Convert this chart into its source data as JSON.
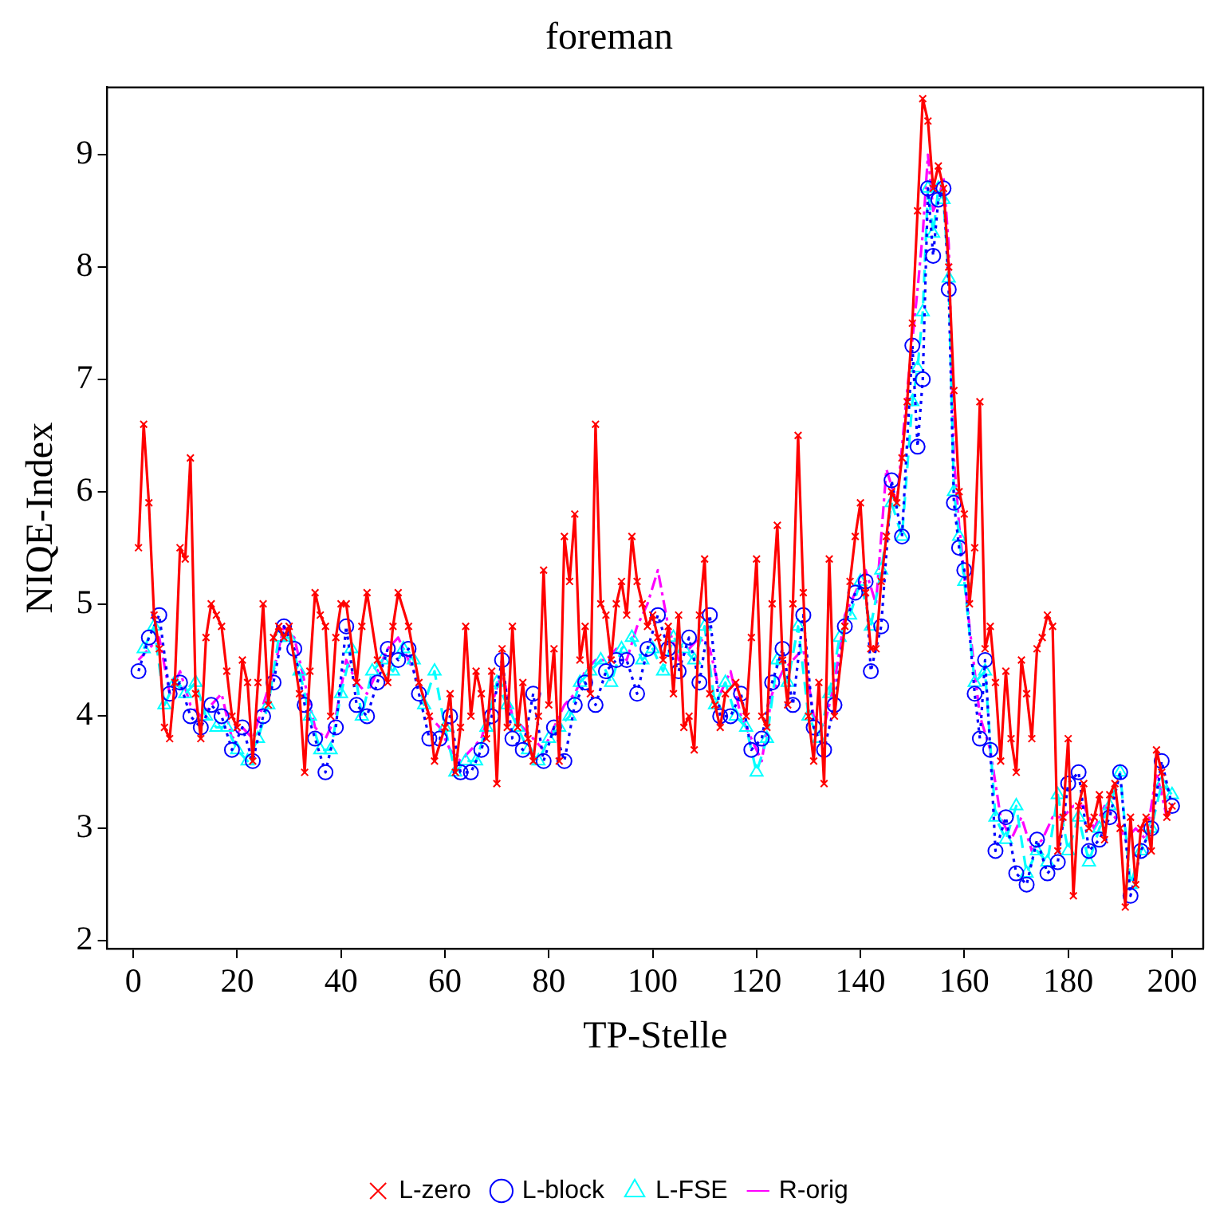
{
  "chart_data": {
    "type": "line",
    "title": "foreman",
    "xlabel": "TP-Stelle",
    "ylabel": "NIQE-Index",
    "xlim": [
      -5,
      206
    ],
    "ylim": [
      1.93,
      9.6
    ],
    "xticks": [
      0,
      20,
      40,
      60,
      80,
      100,
      120,
      140,
      160,
      180,
      200
    ],
    "yticks": [
      2,
      3,
      4,
      5,
      6,
      7,
      8,
      9
    ],
    "grid": false,
    "legend": "bottom",
    "series": [
      {
        "name": "L-zero",
        "color": "#ff0000",
        "marker": "cross",
        "line_style": "solid",
        "x": [
          1,
          2,
          3,
          4,
          5,
          6,
          7,
          8,
          9,
          10,
          11,
          12,
          13,
          14,
          15,
          16,
          17,
          18,
          19,
          20,
          21,
          22,
          23,
          24,
          25,
          26,
          27,
          28,
          29,
          30,
          32,
          33,
          34,
          35,
          36,
          37,
          38,
          39,
          40,
          41,
          43,
          44,
          45,
          47,
          49,
          50,
          51,
          53,
          55,
          57,
          58,
          60,
          61,
          62,
          63,
          64,
          65,
          66,
          67,
          68,
          69,
          70,
          71,
          72,
          73,
          74,
          75,
          76,
          77,
          78,
          79,
          80,
          81,
          82,
          83,
          84,
          85,
          86,
          87,
          88,
          89,
          90,
          91,
          92,
          93,
          94,
          95,
          96,
          97,
          98,
          99,
          100,
          101,
          102,
          103,
          104,
          105,
          106,
          107,
          108,
          109,
          110,
          111,
          112,
          113,
          114,
          116,
          118,
          119,
          120,
          121,
          122,
          123,
          124,
          125,
          126,
          127,
          128,
          129,
          130,
          131,
          132,
          133,
          134,
          135,
          137,
          138,
          139,
          140,
          141,
          142,
          143,
          144,
          145,
          146,
          147,
          148,
          149,
          150,
          151,
          152,
          153,
          154,
          155,
          156,
          157,
          158,
          159,
          160,
          161,
          162,
          163,
          164,
          165,
          166,
          167,
          168,
          169,
          170,
          171,
          172,
          173,
          174,
          175,
          176,
          177,
          178,
          179,
          180,
          181,
          182,
          183,
          184,
          185,
          186,
          187,
          188,
          189,
          190,
          191,
          192,
          193,
          194,
          195,
          196,
          197,
          198,
          199,
          200
        ],
        "values": [
          5.5,
          6.6,
          5.9,
          4.9,
          4.6,
          3.9,
          3.8,
          4.3,
          5.5,
          5.4,
          6.3,
          4.2,
          3.8,
          4.7,
          5.0,
          4.9,
          4.8,
          4.4,
          4.0,
          3.9,
          4.5,
          4.3,
          3.6,
          4.3,
          5.0,
          4.1,
          4.7,
          4.8,
          4.7,
          4.8,
          4.2,
          3.5,
          4.4,
          5.1,
          4.9,
          4.8,
          4.0,
          4.7,
          5.0,
          5.0,
          4.3,
          4.8,
          5.1,
          4.5,
          4.3,
          4.8,
          5.1,
          4.8,
          4.3,
          4.0,
          3.6,
          3.9,
          4.2,
          3.5,
          3.9,
          4.8,
          4.0,
          4.4,
          4.2,
          3.8,
          4.4,
          3.4,
          4.6,
          3.9,
          4.8,
          3.9,
          4.3,
          3.8,
          3.6,
          4.0,
          5.3,
          4.1,
          4.6,
          3.6,
          5.6,
          5.2,
          5.8,
          4.5,
          4.8,
          4.2,
          6.6,
          5.0,
          4.9,
          4.5,
          5.0,
          5.2,
          4.9,
          5.6,
          5.2,
          5.0,
          4.8,
          4.9,
          4.7,
          4.5,
          4.8,
          4.2,
          4.9,
          3.9,
          4.0,
          3.7,
          4.9,
          5.4,
          4.2,
          4.1,
          3.9,
          4.2,
          4.3,
          4.0,
          4.7,
          5.4,
          4.0,
          3.9,
          5.0,
          5.7,
          4.5,
          4.1,
          5.0,
          6.5,
          5.1,
          4.0,
          3.6,
          4.3,
          3.4,
          5.4,
          4.0,
          4.8,
          5.2,
          5.6,
          5.9,
          5.1,
          4.6,
          4.6,
          5.2,
          5.6,
          6.0,
          5.9,
          6.3,
          6.8,
          7.5,
          8.5,
          9.5,
          9.3,
          8.7,
          8.9,
          8.7,
          8.0,
          6.9,
          6.0,
          5.8,
          5.0,
          5.5,
          6.8,
          4.6,
          4.8,
          4.3,
          3.6,
          4.4,
          3.8,
          3.5,
          4.5,
          4.2,
          3.8,
          4.6,
          4.7,
          4.9,
          4.8,
          2.8,
          3.1,
          3.8,
          2.4,
          3.2,
          3.4,
          3.0,
          3.1,
          3.3,
          2.9,
          3.3,
          3.4,
          3.0,
          2.3,
          3.1,
          2.5,
          3.0,
          3.1,
          2.8,
          3.7,
          3.5,
          3.1,
          3.2
        ]
      },
      {
        "name": "L-block",
        "color": "#0000ff",
        "marker": "circle",
        "line_style": "dotted",
        "x": [
          1,
          3,
          5,
          7,
          9,
          11,
          13,
          15,
          17,
          19,
          21,
          23,
          25,
          27,
          29,
          31,
          33,
          35,
          37,
          39,
          41,
          43,
          45,
          47,
          49,
          51,
          53,
          55,
          57,
          59,
          61,
          63,
          65,
          67,
          69,
          71,
          73,
          75,
          77,
          79,
          81,
          83,
          85,
          87,
          89,
          91,
          93,
          95,
          97,
          99,
          101,
          103,
          105,
          107,
          109,
          111,
          113,
          115,
          117,
          119,
          121,
          123,
          125,
          127,
          129,
          131,
          133,
          135,
          137,
          139,
          141,
          142,
          144,
          146,
          148,
          150,
          151,
          152,
          153,
          154,
          155,
          156,
          157,
          158,
          159,
          160,
          162,
          163,
          164,
          165,
          166,
          168,
          170,
          172,
          174,
          176,
          178,
          180,
          182,
          184,
          186,
          188,
          190,
          192,
          194,
          196,
          198,
          200
        ],
        "values": [
          4.4,
          4.7,
          4.9,
          4.2,
          4.3,
          4.0,
          3.9,
          4.1,
          4.0,
          3.7,
          3.9,
          3.6,
          4.0,
          4.3,
          4.8,
          4.6,
          4.1,
          3.8,
          3.5,
          3.9,
          4.8,
          4.1,
          4.0,
          4.3,
          4.6,
          4.5,
          4.6,
          4.2,
          3.8,
          3.8,
          4.0,
          3.5,
          3.5,
          3.7,
          4.0,
          4.5,
          3.8,
          3.7,
          4.2,
          3.6,
          3.9,
          3.6,
          4.1,
          4.3,
          4.1,
          4.4,
          4.5,
          4.5,
          4.2,
          4.6,
          4.9,
          4.6,
          4.4,
          4.7,
          4.3,
          4.9,
          4.0,
          4.0,
          4.2,
          3.7,
          3.8,
          4.3,
          4.6,
          4.1,
          4.9,
          3.9,
          3.7,
          4.1,
          4.8,
          5.1,
          5.2,
          4.4,
          4.8,
          6.1,
          5.6,
          7.3,
          6.4,
          7.0,
          8.7,
          8.1,
          8.6,
          8.7,
          7.8,
          5.9,
          5.5,
          5.3,
          4.2,
          3.8,
          4.5,
          3.7,
          2.8,
          3.1,
          2.6,
          2.5,
          2.9,
          2.6,
          2.7,
          3.4,
          3.5,
          2.8,
          2.9,
          3.1,
          3.5,
          2.4,
          2.8,
          3.0,
          3.6,
          3.2
        ]
      },
      {
        "name": "L-FSE",
        "color": "#00ffff",
        "marker": "triangle",
        "line_style": "dashed",
        "x": [
          2,
          4,
          6,
          8,
          10,
          12,
          14,
          16,
          18,
          20,
          22,
          24,
          26,
          28,
          30,
          32,
          34,
          36,
          38,
          40,
          42,
          44,
          46,
          48,
          50,
          52,
          54,
          56,
          58,
          60,
          62,
          64,
          66,
          68,
          70,
          72,
          74,
          76,
          78,
          80,
          82,
          84,
          86,
          88,
          90,
          92,
          94,
          96,
          98,
          100,
          102,
          104,
          106,
          108,
          110,
          112,
          114,
          116,
          118,
          120,
          122,
          124,
          126,
          128,
          130,
          132,
          134,
          136,
          138,
          140,
          142,
          144,
          146,
          148,
          150,
          151,
          152,
          153,
          154,
          155,
          156,
          157,
          158,
          159,
          160,
          162,
          164,
          166,
          168,
          170,
          172,
          174,
          176,
          178,
          180,
          182,
          184,
          186,
          188,
          190,
          192,
          194,
          196,
          198,
          200
        ],
        "values": [
          4.6,
          4.8,
          4.1,
          4.3,
          4.2,
          4.3,
          4.0,
          3.9,
          3.9,
          3.7,
          3.6,
          3.8,
          4.1,
          4.7,
          4.7,
          4.4,
          4.0,
          3.7,
          3.7,
          4.2,
          4.6,
          4.0,
          4.4,
          4.5,
          4.4,
          4.6,
          4.5,
          4.1,
          4.4,
          3.9,
          3.5,
          3.6,
          3.6,
          3.9,
          4.3,
          4.1,
          3.9,
          3.7,
          3.6,
          3.8,
          3.9,
          4.0,
          4.3,
          4.4,
          4.5,
          4.3,
          4.6,
          4.7,
          4.5,
          4.6,
          4.4,
          4.7,
          4.6,
          4.5,
          4.8,
          4.1,
          4.3,
          4.0,
          3.9,
          3.5,
          3.8,
          4.5,
          4.3,
          4.8,
          4.0,
          3.8,
          4.2,
          4.7,
          4.9,
          5.2,
          4.8,
          5.3,
          5.9,
          5.6,
          6.8,
          7.1,
          7.6,
          8.7,
          8.3,
          8.7,
          8.6,
          7.9,
          6.0,
          5.6,
          5.2,
          4.3,
          4.4,
          3.1,
          2.9,
          3.2,
          2.6,
          2.8,
          2.7,
          3.3,
          2.8,
          3.1,
          2.7,
          3.0,
          3.2,
          3.5,
          2.5,
          2.8,
          3.0,
          3.4,
          3.3
        ]
      },
      {
        "name": "R-orig",
        "color": "#ff00ff",
        "marker": "none",
        "line_style": "dashdot",
        "x": [
          1,
          3,
          5,
          7,
          9,
          11,
          13,
          15,
          17,
          19,
          21,
          23,
          25,
          27,
          29,
          31,
          33,
          35,
          37,
          39,
          41,
          43,
          45,
          47,
          49,
          51,
          53,
          55,
          57,
          59,
          61,
          63,
          65,
          67,
          69,
          71,
          73,
          75,
          77,
          79,
          81,
          83,
          85,
          87,
          89,
          91,
          93,
          95,
          97,
          99,
          101,
          103,
          105,
          107,
          109,
          111,
          113,
          115,
          117,
          119,
          121,
          123,
          125,
          127,
          129,
          131,
          133,
          135,
          137,
          139,
          141,
          143,
          145,
          147,
          149,
          151,
          152,
          153,
          154,
          155,
          156,
          157,
          158,
          159,
          161,
          163,
          165,
          167,
          169,
          171,
          173,
          175,
          177,
          179,
          181,
          183,
          185,
          187,
          189,
          191,
          193,
          195,
          197,
          199
        ],
        "values": [
          4.5,
          4.6,
          4.7,
          4.2,
          4.4,
          4.1,
          4.0,
          4.1,
          4.2,
          3.8,
          3.9,
          3.8,
          4.1,
          4.4,
          4.8,
          4.7,
          4.3,
          3.9,
          3.8,
          4.0,
          4.5,
          4.3,
          4.2,
          4.4,
          4.6,
          4.7,
          4.5,
          4.3,
          4.0,
          3.9,
          3.7,
          3.6,
          3.7,
          3.8,
          4.1,
          4.4,
          4.0,
          3.9,
          3.8,
          3.7,
          3.9,
          4.1,
          4.2,
          4.4,
          4.5,
          4.5,
          4.6,
          4.5,
          4.8,
          5.0,
          5.3,
          4.8,
          4.5,
          4.6,
          4.7,
          4.6,
          4.2,
          4.4,
          4.0,
          3.8,
          3.6,
          4.2,
          4.4,
          4.5,
          4.6,
          4.0,
          3.9,
          4.3,
          4.9,
          5.1,
          5.3,
          5.0,
          6.2,
          5.9,
          6.9,
          7.8,
          8.3,
          9.0,
          8.5,
          8.6,
          8.8,
          8.2,
          6.3,
          5.7,
          4.8,
          4.0,
          3.7,
          3.1,
          2.9,
          3.1,
          2.8,
          2.9,
          3.1,
          3.1,
          3.2,
          3.2,
          3.0,
          3.2,
          3.1,
          2.9,
          3.0,
          2.9,
          3.5,
          3.1
        ]
      }
    ]
  }
}
